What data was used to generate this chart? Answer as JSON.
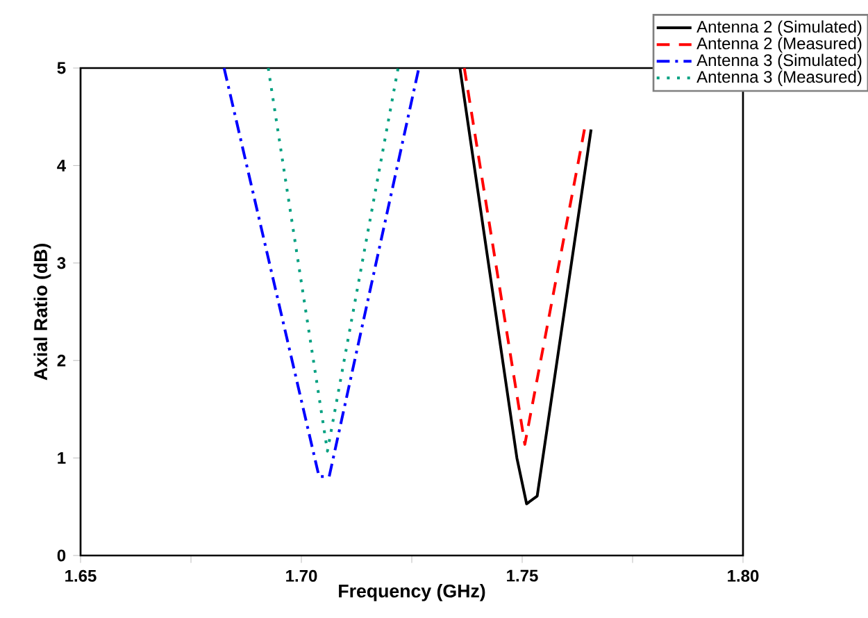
{
  "chart_data": {
    "type": "line",
    "xlabel": "Frequency (GHz)",
    "ylabel": "Axial Ratio (dB)",
    "xlim": [
      1.65,
      1.8
    ],
    "ylim": [
      0,
      5
    ],
    "xticks": [
      1.65,
      {
        "value": 1.675,
        "label": null
      },
      {
        "value": 1.7,
        "label": "1.70"
      },
      {
        "value": 1.725,
        "label": null
      },
      1.75,
      {
        "value": 1.775,
        "label": null
      },
      {
        "value": 1.8,
        "label": "1.80"
      }
    ],
    "yticks": [
      0,
      1,
      2,
      3,
      4,
      5
    ],
    "grid": false,
    "legend": "top right",
    "series": [
      {
        "name": "Antenna 2 (Simulated)",
        "color": "#000000",
        "line_style": "solid",
        "x": [
          1.7359,
          1.7488,
          1.751,
          1.7534,
          1.7656
        ],
        "values": [
          5,
          1.0,
          0.53,
          0.61,
          4.37
        ]
      },
      {
        "name": "Antenna 2 (Measured)",
        "color": "#ff0000",
        "line_style": "dashed",
        "x": [
          1.7369,
          1.7506,
          1.7641
        ],
        "values": [
          5,
          1.14,
          4.37
        ]
      },
      {
        "name": "Antenna 3 (Simulated)",
        "color": "#0000ff",
        "line_style": "dashdot",
        "x": [
          1.6825,
          1.704,
          1.7063,
          1.7266
        ],
        "values": [
          5,
          0.81,
          0.81,
          5
        ]
      },
      {
        "name": "Antenna 3 (Measured)",
        "color": "#00a080",
        "line_style": "dotted",
        "x": [
          1.6925,
          1.7059,
          1.7219
        ],
        "values": [
          5,
          1.07,
          5
        ]
      }
    ]
  }
}
